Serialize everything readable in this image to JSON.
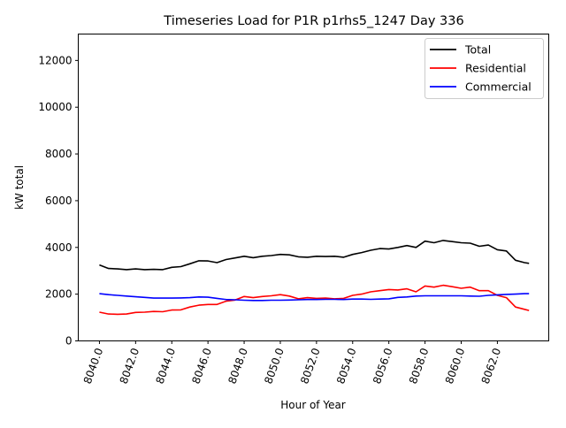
{
  "chart_data": {
    "type": "line",
    "title": "Timeseries Load for P1R p1rhs5_1247  Day 336",
    "xlabel": "Hour of Year",
    "ylabel": "kW total",
    "xlim": [
      8038.83,
      8064.84
    ],
    "ylim": [
      0,
      13130
    ],
    "xticks": [
      8040,
      8042,
      8044,
      8046,
      8048,
      8050,
      8052,
      8054,
      8056,
      8058,
      8060,
      8062
    ],
    "xtick_labels": [
      "8040.0",
      "8042.0",
      "8044.0",
      "8046.0",
      "8048.0",
      "8050.0",
      "8052.0",
      "8054.0",
      "8056.0",
      "8058.0",
      "8060.0",
      "8062.0"
    ],
    "yticks": [
      0,
      2000,
      4000,
      6000,
      8000,
      10000,
      12000
    ],
    "ytick_labels": [
      "0",
      "2000",
      "4000",
      "6000",
      "8000",
      "10000",
      "12000"
    ],
    "grid": false,
    "legend_position": "top-right",
    "x": [
      8040,
      8040.5,
      8041,
      8041.5,
      8042,
      8042.5,
      8043,
      8043.5,
      8044,
      8044.5,
      8045,
      8045.5,
      8046,
      8046.5,
      8047,
      8047.5,
      8048,
      8048.5,
      8049,
      8049.5,
      8050,
      8050.5,
      8051,
      8051.5,
      8052,
      8052.5,
      8053,
      8053.5,
      8054,
      8054.5,
      8055,
      8055.5,
      8056,
      8056.5,
      8057,
      8057.5,
      8058,
      8058.5,
      8059,
      8059.5,
      8060,
      8060.5,
      8061,
      8061.5,
      8062,
      8062.5,
      8063,
      8063.5,
      8063.75
    ],
    "series": [
      {
        "name": "Total",
        "color": "#000000",
        "values": [
          3250,
          3100,
          3080,
          3050,
          3080,
          3050,
          3060,
          3050,
          3150,
          3180,
          3300,
          3430,
          3420,
          3350,
          3480,
          3550,
          3620,
          3560,
          3620,
          3650,
          3700,
          3680,
          3600,
          3580,
          3620,
          3610,
          3620,
          3580,
          3700,
          3780,
          3880,
          3950,
          3930,
          4000,
          4080,
          4000,
          4270,
          4200,
          4300,
          4250,
          4200,
          4180,
          4050,
          4100,
          3900,
          3850,
          3450,
          3350,
          3320
        ]
      },
      {
        "name": "Residential",
        "color": "#ff0000",
        "values": [
          1230,
          1150,
          1140,
          1150,
          1220,
          1230,
          1260,
          1250,
          1320,
          1330,
          1450,
          1530,
          1560,
          1560,
          1700,
          1750,
          1900,
          1850,
          1900,
          1930,
          1980,
          1920,
          1800,
          1850,
          1820,
          1830,
          1800,
          1820,
          1950,
          2000,
          2100,
          2150,
          2200,
          2180,
          2230,
          2100,
          2350,
          2300,
          2380,
          2320,
          2250,
          2300,
          2150,
          2150,
          1950,
          1850,
          1450,
          1350,
          1300
        ]
      },
      {
        "name": "Commercial",
        "color": "#0000ff",
        "values": [
          2020,
          1980,
          1950,
          1920,
          1890,
          1860,
          1830,
          1830,
          1830,
          1840,
          1850,
          1880,
          1870,
          1820,
          1770,
          1760,
          1740,
          1730,
          1730,
          1740,
          1740,
          1750,
          1760,
          1770,
          1770,
          1780,
          1780,
          1770,
          1790,
          1790,
          1780,
          1790,
          1800,
          1860,
          1880,
          1920,
          1930,
          1930,
          1930,
          1930,
          1930,
          1920,
          1910,
          1950,
          1970,
          1990,
          2000,
          2020,
          2020
        ]
      }
    ]
  }
}
